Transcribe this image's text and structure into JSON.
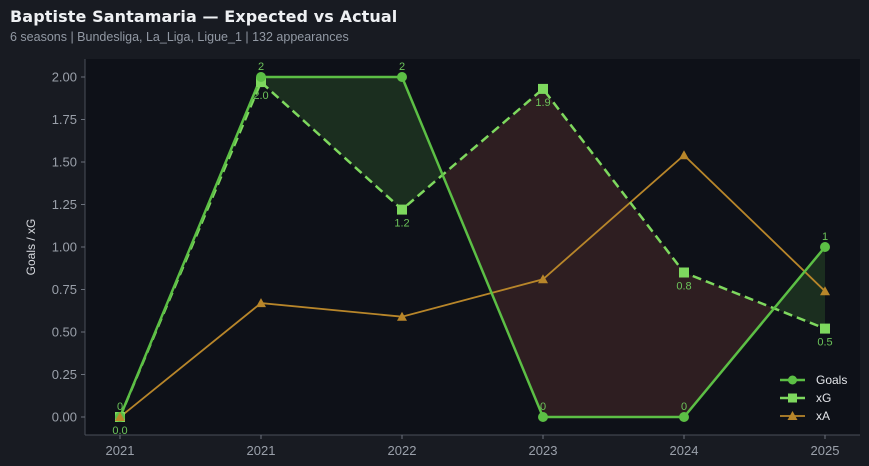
{
  "header": {
    "title": "Baptiste Santamaria — Expected vs Actual",
    "subtitle": "6 seasons | Bundesliga, La_Liga, Ligue_1 | 132 appearances"
  },
  "colors": {
    "background": "#181b22",
    "plot_bg": "#0e1118",
    "goals": "#5cbf45",
    "xg": "#7ed85e",
    "xa": "#b8862a",
    "overperform_fill": "#1b2e1f",
    "underperform_fill": "#2e1e21"
  },
  "chart_data": {
    "type": "line",
    "title": "Baptiste Santamaria — Expected vs Actual",
    "subtitle": "6 seasons | Bundesliga, La_Liga, Ligue_1 | 132 appearances",
    "xlabel": "",
    "ylabel": "Goals / xG",
    "categories": [
      "2021",
      "2021",
      "2022",
      "2023",
      "2024",
      "2025"
    ],
    "ylim": [
      -0.1,
      2.1
    ],
    "yticks": [
      "0.00",
      "0.25",
      "0.50",
      "0.75",
      "1.00",
      "1.25",
      "1.50",
      "1.75",
      "2.00"
    ],
    "grid": false,
    "legend_position": "lower right",
    "series": [
      {
        "name": "Goals",
        "values": [
          0,
          2,
          2,
          0,
          0,
          1
        ],
        "labels": [
          "0",
          "2",
          "2",
          "0",
          "0",
          "1"
        ],
        "style": "solid",
        "marker": "circle"
      },
      {
        "name": "xG",
        "values": [
          0.0,
          1.97,
          1.22,
          1.93,
          0.85,
          0.52
        ],
        "labels": [
          "0.0",
          "2.0",
          "1.2",
          "1.9",
          "0.8",
          "0.5"
        ],
        "style": "dashed",
        "marker": "square"
      },
      {
        "name": "xA",
        "values": [
          0.0,
          0.67,
          0.59,
          0.81,
          1.54,
          0.74
        ],
        "style": "solid",
        "marker": "triangle"
      }
    ]
  }
}
